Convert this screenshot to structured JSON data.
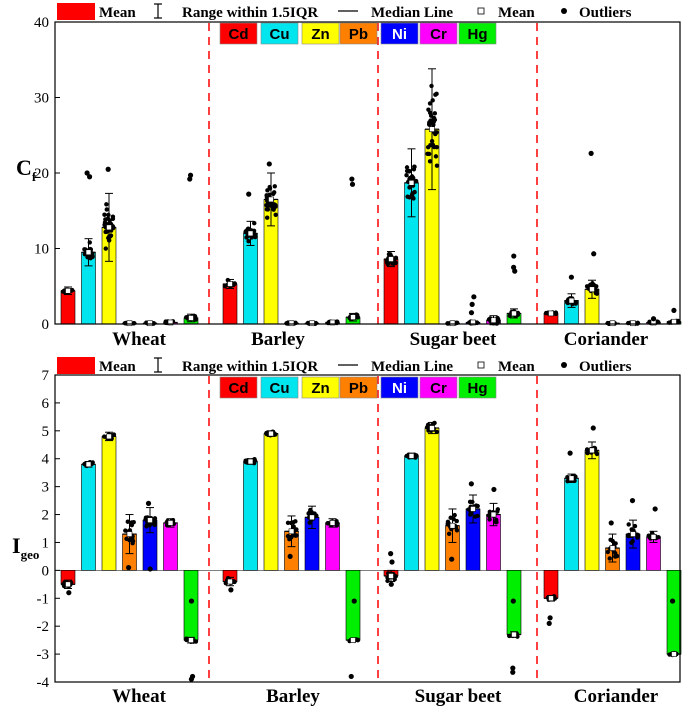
{
  "legend": {
    "mean_bar": "Mean",
    "range": "Range within 1.5IQR",
    "median": "Median Line",
    "mean_point": "Mean",
    "outliers": "Outliers"
  },
  "colors": {
    "Cd": "#ff0000",
    "Cu": "#00e5ee",
    "Zn": "#ffff00",
    "Pb": "#ff8000",
    "Ni": "#0000ff",
    "Cr": "#ff00ff",
    "Hg": "#00ee00"
  },
  "chart_data": [
    {
      "type": "bar",
      "panel": "top",
      "ylabel_main": "C",
      "ylabel_sub": "f",
      "ylim": [
        0,
        40
      ],
      "yticks": [
        "0",
        "10",
        "20",
        "30",
        "40"
      ],
      "categories": [
        "Wheat",
        "Barley",
        "Sugar beet",
        "Coriander"
      ],
      "elements": [
        "Cd",
        "Cu",
        "Zn",
        "Pb",
        "Ni",
        "Cr",
        "Hg"
      ],
      "series": [
        {
          "name": "Cd",
          "values": [
            4.4,
            5.3,
            8.6,
            1.4
          ]
        },
        {
          "name": "Cu",
          "values": [
            9.5,
            12.0,
            18.7,
            3.1
          ]
        },
        {
          "name": "Zn",
          "values": [
            12.8,
            16.5,
            25.8,
            4.6
          ]
        },
        {
          "name": "Pb",
          "values": [
            0.1,
            0.1,
            0.1,
            0.1
          ]
        },
        {
          "name": "Ni",
          "values": [
            0.1,
            0.1,
            0.2,
            0.1
          ]
        },
        {
          "name": "Cr",
          "values": [
            0.2,
            0.2,
            0.5,
            0.2
          ]
        },
        {
          "name": "Hg",
          "values": [
            0.8,
            0.9,
            1.4,
            0.3
          ]
        }
      ],
      "spread": [
        [
          0.5,
          1.8,
          4.5,
          0.1,
          0.1,
          0.2,
          0.5
        ],
        [
          0.6,
          1.6,
          3.5,
          0.1,
          0.1,
          0.2,
          0.5
        ],
        [
          1.0,
          4.5,
          8.0,
          0.1,
          0.2,
          0.6,
          0.6
        ],
        [
          0.2,
          0.9,
          1.2,
          0.1,
          0.1,
          0.2,
          0.2
        ]
      ],
      "outliers": [
        [
          [],
          [
            19.5,
            20.0
          ],
          [
            20.5
          ],
          [],
          [],
          [],
          [
            19.2,
            19.7
          ]
        ],
        [
          [],
          [
            17.2
          ],
          [
            21.2
          ],
          [],
          [],
          [],
          [
            18.5,
            19.2
          ]
        ],
        [
          [],
          [],
          [],
          [],
          [
            1.5,
            2.6,
            3.6
          ],
          [],
          [
            7.0,
            7.5,
            9.0
          ]
        ],
        [
          [],
          [
            6.2
          ],
          [
            22.6,
            9.3
          ],
          [],
          [],
          [
            0.7
          ],
          [
            1.8
          ]
        ]
      ]
    },
    {
      "type": "bar",
      "panel": "bottom",
      "ylabel_main": "I",
      "ylabel_sub": "geo",
      "ylim": [
        -4,
        7
      ],
      "yticks": [
        "-4",
        "-3",
        "-2",
        "-1",
        "0",
        "1",
        "2",
        "3",
        "4",
        "5",
        "6",
        "7"
      ],
      "categories": [
        "Wheat",
        "Barley",
        "Sugar beet",
        "Coriander"
      ],
      "elements": [
        "Cd",
        "Cu",
        "Zn",
        "Pb",
        "Ni",
        "Cr",
        "Hg"
      ],
      "series": [
        {
          "name": "Cd",
          "values": [
            -0.5,
            -0.4,
            -0.2,
            -1.0
          ]
        },
        {
          "name": "Cu",
          "values": [
            3.8,
            3.9,
            4.1,
            3.3
          ]
        },
        {
          "name": "Zn",
          "values": [
            4.8,
            4.9,
            5.1,
            4.3
          ]
        },
        {
          "name": "Pb",
          "values": [
            1.3,
            1.4,
            1.6,
            0.8
          ]
        },
        {
          "name": "Ni",
          "values": [
            1.8,
            1.9,
            2.2,
            1.3
          ]
        },
        {
          "name": "Cr",
          "values": [
            1.7,
            1.7,
            2.0,
            1.2
          ]
        },
        {
          "name": "Hg",
          "values": [
            -2.5,
            -2.5,
            -2.3,
            -3.0
          ]
        }
      ],
      "spread": [
        [
          0.15,
          0.1,
          0.15,
          0.7,
          0.45,
          0.15,
          0.1
        ],
        [
          0.15,
          0.1,
          0.1,
          0.55,
          0.4,
          0.15,
          0.05
        ],
        [
          0.2,
          0.1,
          0.2,
          0.6,
          0.5,
          0.4,
          0.1
        ],
        [
          0.1,
          0.15,
          0.3,
          0.5,
          0.5,
          0.2,
          0.05
        ]
      ],
      "outliers": [
        [
          [
            -0.8
          ],
          [],
          [],
          [
            0.1
          ],
          [
            0.05,
            2.4
          ],
          [],
          [
            -1.1,
            -3.8,
            -3.9
          ]
        ],
        [
          [
            -0.7
          ],
          [],
          [],
          [
            0.5
          ],
          [],
          [],
          [
            -1.1,
            -3.8
          ]
        ],
        [
          [
            0.3,
            0.6,
            -0.5
          ],
          [],
          [],
          [
            0.4
          ],
          [
            3.1
          ],
          [
            2.9
          ],
          [
            -1.1,
            -3.5,
            -3.65
          ]
        ],
        [
          [
            -1.9,
            -1.7
          ],
          [
            4.2
          ],
          [
            5.1
          ],
          [
            1.7
          ],
          [
            2.5
          ],
          [
            2.2
          ],
          [
            -1.1
          ]
        ]
      ]
    }
  ]
}
